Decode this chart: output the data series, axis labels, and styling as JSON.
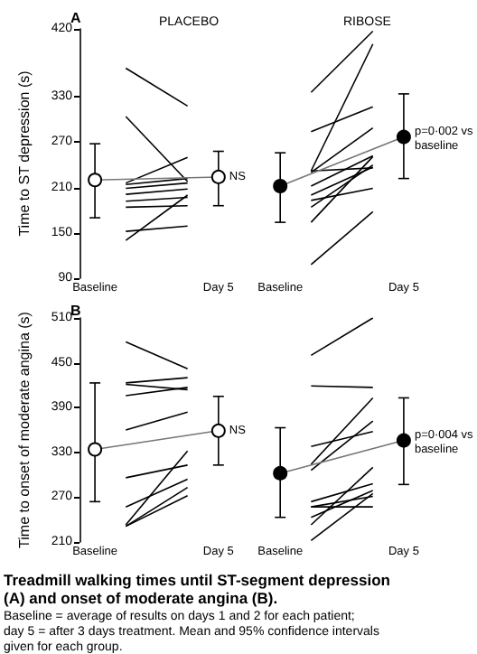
{
  "chart_data": [
    {
      "type": "line",
      "title": "A",
      "ylabel": "Time to ST depression (s)",
      "categories": [
        "Baseline",
        null,
        null,
        null,
        "Day 5",
        null,
        "Baseline",
        null,
        null,
        null,
        "Day 5"
      ],
      "ylim": [
        90,
        420
      ],
      "yticks": [
        90,
        150,
        210,
        270,
        330,
        420
      ],
      "marker": "none",
      "annotations": [
        "PLACEBO",
        "RIBOSE",
        "NS",
        "p=0·002 vs baseline"
      ],
      "series": [
        {
          "color": "#000000",
          "values": [
            null,
            368,
            null,
            318,
            null,
            null,
            null,
            null,
            null,
            null,
            null
          ]
        },
        {
          "color": "#000000",
          "values": [
            null,
            304,
            null,
            218,
            null,
            null,
            null,
            null,
            null,
            null,
            null
          ]
        },
        {
          "color": "#000000",
          "values": [
            null,
            216,
            null,
            250,
            null,
            null,
            null,
            null,
            null,
            null,
            null
          ]
        },
        {
          "color": "#000000",
          "values": [
            null,
            214,
            null,
            222,
            null,
            null,
            null,
            null,
            null,
            null,
            null
          ]
        },
        {
          "color": "#000000",
          "values": [
            null,
            209,
            null,
            216,
            null,
            null,
            null,
            null,
            null,
            null,
            null
          ]
        },
        {
          "color": "#000000",
          "values": [
            null,
            201,
            null,
            208,
            null,
            null,
            null,
            null,
            null,
            null,
            null
          ]
        },
        {
          "color": "#000000",
          "values": [
            null,
            192,
            null,
            197,
            null,
            null,
            null,
            null,
            null,
            null,
            null
          ]
        },
        {
          "color": "#000000",
          "values": [
            null,
            184,
            null,
            186,
            null,
            null,
            null,
            null,
            null,
            null,
            null
          ]
        },
        {
          "color": "#000000",
          "values": [
            null,
            140,
            null,
            200,
            null,
            null,
            null,
            null,
            null,
            null,
            null
          ]
        },
        {
          "color": "#000000",
          "values": [
            null,
            152,
            null,
            159,
            null,
            null,
            null,
            null,
            null,
            null,
            null
          ]
        },
        {
          "color": "#000000",
          "values": [
            null,
            null,
            null,
            null,
            null,
            null,
            null,
            336,
            null,
            417,
            null
          ]
        },
        {
          "color": "#000000",
          "values": [
            null,
            null,
            null,
            null,
            null,
            null,
            null,
            284,
            null,
            317,
            null
          ]
        },
        {
          "color": "#000000",
          "values": [
            null,
            null,
            null,
            null,
            null,
            null,
            null,
            232,
            null,
            400,
            null
          ]
        },
        {
          "color": "#000000",
          "values": [
            null,
            null,
            null,
            null,
            null,
            null,
            null,
            230,
            null,
            289,
            null
          ]
        },
        {
          "color": "#000000",
          "values": [
            null,
            null,
            null,
            null,
            null,
            null,
            null,
            212,
            null,
            252,
            null
          ]
        },
        {
          "color": "#000000",
          "values": [
            null,
            null,
            null,
            null,
            null,
            null,
            null,
            200,
            null,
            237,
            null
          ]
        },
        {
          "color": "#000000",
          "values": [
            null,
            null,
            null,
            null,
            null,
            null,
            null,
            193,
            null,
            209,
            null
          ]
        },
        {
          "color": "#000000",
          "values": [
            null,
            null,
            null,
            null,
            null,
            null,
            null,
            184,
            null,
            240,
            null
          ]
        },
        {
          "color": "#000000",
          "values": [
            null,
            null,
            null,
            null,
            null,
            null,
            null,
            164,
            null,
            251,
            null
          ]
        },
        {
          "color": "#000000",
          "values": [
            null,
            null,
            null,
            null,
            null,
            null,
            null,
            108,
            null,
            178,
            null
          ]
        },
        {
          "color": "#000000",
          "values": [
            null,
            null,
            null,
            null,
            null,
            null,
            null,
            232,
            null,
            236,
            null
          ]
        },
        {
          "color": "#ffffff",
          "marker": "circle",
          "values": [
            220,
            null,
            null,
            null,
            224,
            null,
            null,
            null,
            null,
            null,
            null
          ],
          "errors": [
            [
              170,
              268
            ],
            null,
            null,
            null,
            [
              186,
              258
            ],
            null,
            null,
            null,
            null,
            null,
            null
          ]
        },
        {
          "color": "#000000",
          "marker": "circle",
          "values": [
            null,
            null,
            null,
            null,
            null,
            null,
            212,
            null,
            null,
            null,
            277
          ],
          "errors": [
            null,
            null,
            null,
            null,
            null,
            null,
            [
              164,
              256
            ],
            null,
            null,
            null,
            [
              222,
              334
            ]
          ]
        }
      ]
    },
    {
      "type": "line",
      "title": "B",
      "ylabel": "Time to onset of moderate angina (s)",
      "categories": [
        "Baseline",
        null,
        null,
        null,
        "Day 5",
        null,
        "Baseline",
        null,
        null,
        null,
        "Day 5"
      ],
      "ylim": [
        210,
        510
      ],
      "yticks": [
        210,
        270,
        330,
        390,
        450,
        510
      ],
      "marker": "none",
      "annotations": [
        "NS",
        "p=0·004 vs baseline",
        "Treadmill walking times until ST-segment depression (A) and onset of moderate angina (B).",
        "Baseline = average of results on days 1 and 2 for each patient; day 5 = after 3 days treatment. Mean and 95% confidence intervals given for each group."
      ],
      "series": [
        {
          "color": "#000000",
          "values": [
            null,
            478,
            null,
            442,
            null,
            null,
            null,
            null,
            null,
            null,
            null
          ]
        },
        {
          "color": "#000000",
          "values": [
            null,
            423,
            null,
            430,
            null,
            null,
            null,
            null,
            null,
            null,
            null
          ]
        },
        {
          "color": "#000000",
          "values": [
            null,
            421,
            null,
            414,
            null,
            null,
            null,
            null,
            null,
            null,
            null
          ]
        },
        {
          "color": "#000000",
          "values": [
            null,
            406,
            null,
            417,
            null,
            null,
            null,
            null,
            null,
            null,
            null
          ]
        },
        {
          "color": "#000000",
          "values": [
            null,
            360,
            null,
            384,
            null,
            null,
            null,
            null,
            null,
            null,
            null
          ]
        },
        {
          "color": "#000000",
          "values": [
            null,
            296,
            null,
            313,
            null,
            null,
            null,
            null,
            null,
            null,
            null
          ]
        },
        {
          "color": "#000000",
          "values": [
            null,
            257,
            null,
            294,
            null,
            null,
            null,
            null,
            null,
            null,
            null
          ]
        },
        {
          "color": "#000000",
          "values": [
            null,
            233,
            null,
            332,
            null,
            null,
            null,
            null,
            null,
            null,
            null
          ]
        },
        {
          "color": "#000000",
          "values": [
            null,
            231,
            null,
            283,
            null,
            null,
            null,
            null,
            null,
            null,
            null
          ]
        },
        {
          "color": "#000000",
          "values": [
            null,
            231,
            null,
            272,
            null,
            null,
            null,
            null,
            null,
            null,
            null
          ]
        },
        {
          "color": "#000000",
          "values": [
            null,
            null,
            null,
            null,
            null,
            null,
            null,
            460,
            null,
            510,
            null
          ]
        },
        {
          "color": "#000000",
          "values": [
            null,
            null,
            null,
            null,
            null,
            null,
            null,
            419,
            null,
            417,
            null
          ]
        },
        {
          "color": "#000000",
          "values": [
            null,
            null,
            null,
            null,
            null,
            null,
            null,
            338,
            null,
            358,
            null
          ]
        },
        {
          "color": "#000000",
          "values": [
            null,
            null,
            null,
            null,
            null,
            null,
            null,
            314,
            null,
            403,
            null
          ]
        },
        {
          "color": "#000000",
          "values": [
            null,
            null,
            null,
            null,
            null,
            null,
            null,
            306,
            null,
            372,
            null
          ]
        },
        {
          "color": "#000000",
          "values": [
            null,
            null,
            null,
            null,
            null,
            null,
            null,
            264,
            null,
            288,
            null
          ]
        },
        {
          "color": "#000000",
          "values": [
            null,
            null,
            null,
            null,
            null,
            null,
            null,
            257,
            null,
            271,
            null
          ]
        },
        {
          "color": "#000000",
          "values": [
            null,
            null,
            null,
            null,
            null,
            null,
            null,
            257,
            null,
            257,
            null
          ]
        },
        {
          "color": "#000000",
          "values": [
            null,
            null,
            null,
            null,
            null,
            null,
            null,
            233,
            null,
            310,
            null
          ]
        },
        {
          "color": "#000000",
          "values": [
            null,
            null,
            null,
            null,
            null,
            null,
            null,
            243,
            null,
            279,
            null
          ]
        },
        {
          "color": "#000000",
          "values": [
            null,
            null,
            null,
            null,
            null,
            null,
            null,
            212,
            null,
            275,
            null
          ]
        },
        {
          "color": "#ffffff",
          "marker": "circle",
          "values": [
            334,
            null,
            null,
            null,
            359,
            null,
            null,
            null,
            null,
            null,
            null
          ],
          "errors": [
            [
              264,
              423
            ],
            null,
            null,
            null,
            [
              313,
              405
            ],
            null,
            null,
            null,
            null,
            null,
            null
          ]
        },
        {
          "color": "#000000",
          "marker": "circle",
          "values": [
            null,
            null,
            null,
            null,
            null,
            null,
            302,
            null,
            null,
            null,
            346
          ],
          "errors": [
            null,
            null,
            null,
            null,
            null,
            null,
            [
              243,
              363
            ],
            null,
            null,
            null,
            [
              287,
              403
            ]
          ]
        }
      ]
    }
  ]
}
